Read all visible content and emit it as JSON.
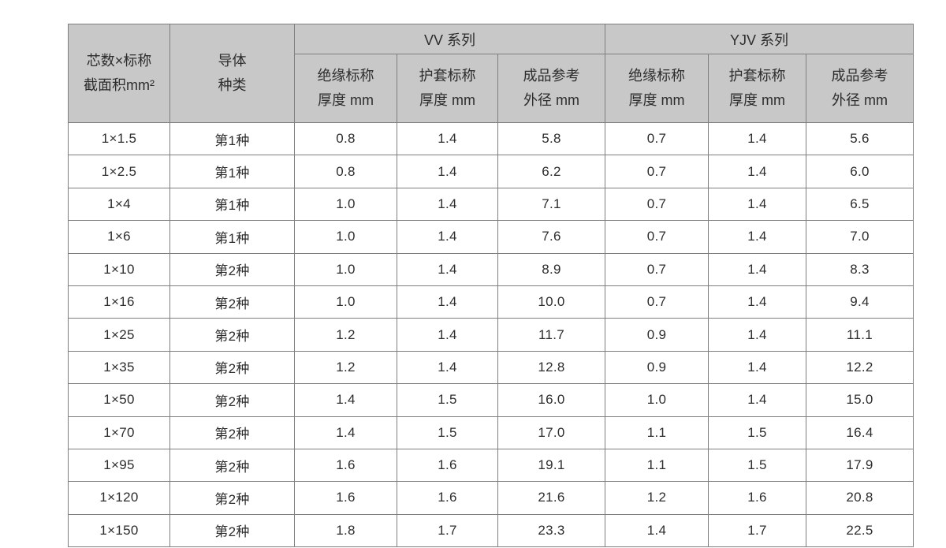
{
  "table": {
    "col_headers": {
      "core": {
        "line1": "芯数×标称",
        "line2": "截面积mm²"
      },
      "conductor": {
        "line1": "导体",
        "line2": "种类"
      }
    },
    "group_headers": [
      "VV 系列",
      "YJV 系列"
    ],
    "sub_headers": [
      {
        "line1": "绝缘标称",
        "line2": "厚度 mm"
      },
      {
        "line1": "护套标称",
        "line2": "厚度 mm"
      },
      {
        "line1": "成品参考",
        "line2": "外径 mm"
      }
    ],
    "rows": [
      [
        "1×1.5",
        "第1种",
        "0.8",
        "1.4",
        "5.8",
        "0.7",
        "1.4",
        "5.6"
      ],
      [
        "1×2.5",
        "第1种",
        "0.8",
        "1.4",
        "6.2",
        "0.7",
        "1.4",
        "6.0"
      ],
      [
        "1×4",
        "第1种",
        "1.0",
        "1.4",
        "7.1",
        "0.7",
        "1.4",
        "6.5"
      ],
      [
        "1×6",
        "第1种",
        "1.0",
        "1.4",
        "7.6",
        "0.7",
        "1.4",
        "7.0"
      ],
      [
        "1×10",
        "第2种",
        "1.0",
        "1.4",
        "8.9",
        "0.7",
        "1.4",
        "8.3"
      ],
      [
        "1×16",
        "第2种",
        "1.0",
        "1.4",
        "10.0",
        "0.7",
        "1.4",
        "9.4"
      ],
      [
        "1×25",
        "第2种",
        "1.2",
        "1.4",
        "11.7",
        "0.9",
        "1.4",
        "11.1"
      ],
      [
        "1×35",
        "第2种",
        "1.2",
        "1.4",
        "12.8",
        "0.9",
        "1.4",
        "12.2"
      ],
      [
        "1×50",
        "第2种",
        "1.4",
        "1.5",
        "16.0",
        "1.0",
        "1.4",
        "15.0"
      ],
      [
        "1×70",
        "第2种",
        "1.4",
        "1.5",
        "17.0",
        "1.1",
        "1.5",
        "16.4"
      ],
      [
        "1×95",
        "第2种",
        "1.6",
        "1.6",
        "19.1",
        "1.1",
        "1.5",
        "17.9"
      ],
      [
        "1×120",
        "第2种",
        "1.6",
        "1.6",
        "21.6",
        "1.2",
        "1.6",
        "20.8"
      ],
      [
        "1×150",
        "第2种",
        "1.8",
        "1.7",
        "23.3",
        "1.4",
        "1.7",
        "22.5"
      ]
    ]
  },
  "colors": {
    "header_bg": "#c8c8c8",
    "body_bg": "#ffffff",
    "border_inner": "#7e7e7e",
    "border_outer": "#5c5c5c",
    "text": "#2d2d2d"
  }
}
